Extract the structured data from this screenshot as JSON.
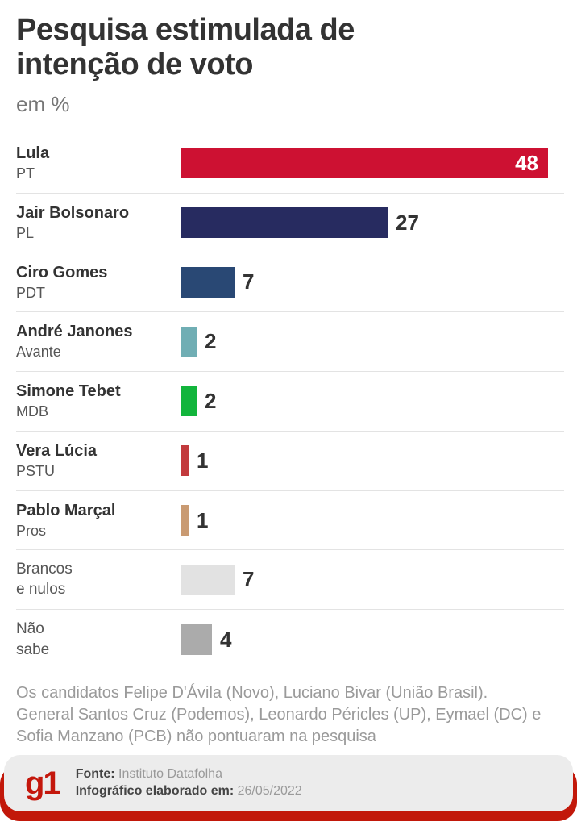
{
  "header": {
    "title": "Pesquisa estimulada de intenção de voto",
    "subtitle": "em %"
  },
  "chart_data": {
    "type": "bar",
    "orientation": "horizontal",
    "unit": "%",
    "value_range": [
      0,
      48
    ],
    "rows": [
      {
        "name": "Lula",
        "sub": "PT",
        "value": 48,
        "color": "#cd1132",
        "muted": false,
        "value_inside": true
      },
      {
        "name": "Jair Bolsonaro",
        "sub": "PL",
        "value": 27,
        "color": "#272b60",
        "muted": false,
        "value_inside": false
      },
      {
        "name": "Ciro Gomes",
        "sub": "PDT",
        "value": 7,
        "color": "#294874",
        "muted": false,
        "value_inside": false
      },
      {
        "name": "André Janones",
        "sub": "Avante",
        "value": 2,
        "color": "#70aeb4",
        "muted": false,
        "value_inside": false
      },
      {
        "name": "Simone Tebet",
        "sub": "MDB",
        "value": 2,
        "color": "#12b53c",
        "muted": false,
        "value_inside": false
      },
      {
        "name": "Vera Lúcia",
        "sub": "PSTU",
        "value": 1,
        "color": "#c23a3d",
        "muted": false,
        "value_inside": false
      },
      {
        "name": "Pablo Marçal",
        "sub": "Pros",
        "value": 1,
        "color": "#c99a72",
        "muted": false,
        "value_inside": false
      },
      {
        "name": "Brancos",
        "sub": "e nulos",
        "value": 7,
        "color": "#e2e2e2",
        "muted": true,
        "value_inside": false
      },
      {
        "name": "Não",
        "sub": "sabe",
        "value": 4,
        "color": "#ababab",
        "muted": true,
        "value_inside": false
      }
    ]
  },
  "footnote": {
    "lines": [
      "Os candidatos Felipe D'Ávila (Novo), Luciano Bivar (União Brasil).",
      "General Santos Cruz (Podemos), Leonardo Péricles (UP), Eymael (DC) e",
      "Sofia Manzano (PCB) não pontuaram na pesquisa"
    ]
  },
  "footer": {
    "logo_text": "g1",
    "source_label": "Fonte:",
    "source_value": " Instituto Datafolha",
    "date_label": "Infográfico elaborado em:",
    "date_value": " 26/05/2022"
  },
  "colors": {
    "accent_red": "#c2180a",
    "logo_red": "#c4170c",
    "title_text": "#333333",
    "muted_text": "#9a9a9a",
    "divider": "#e3e3e3",
    "footer_bg": "#ececec"
  }
}
